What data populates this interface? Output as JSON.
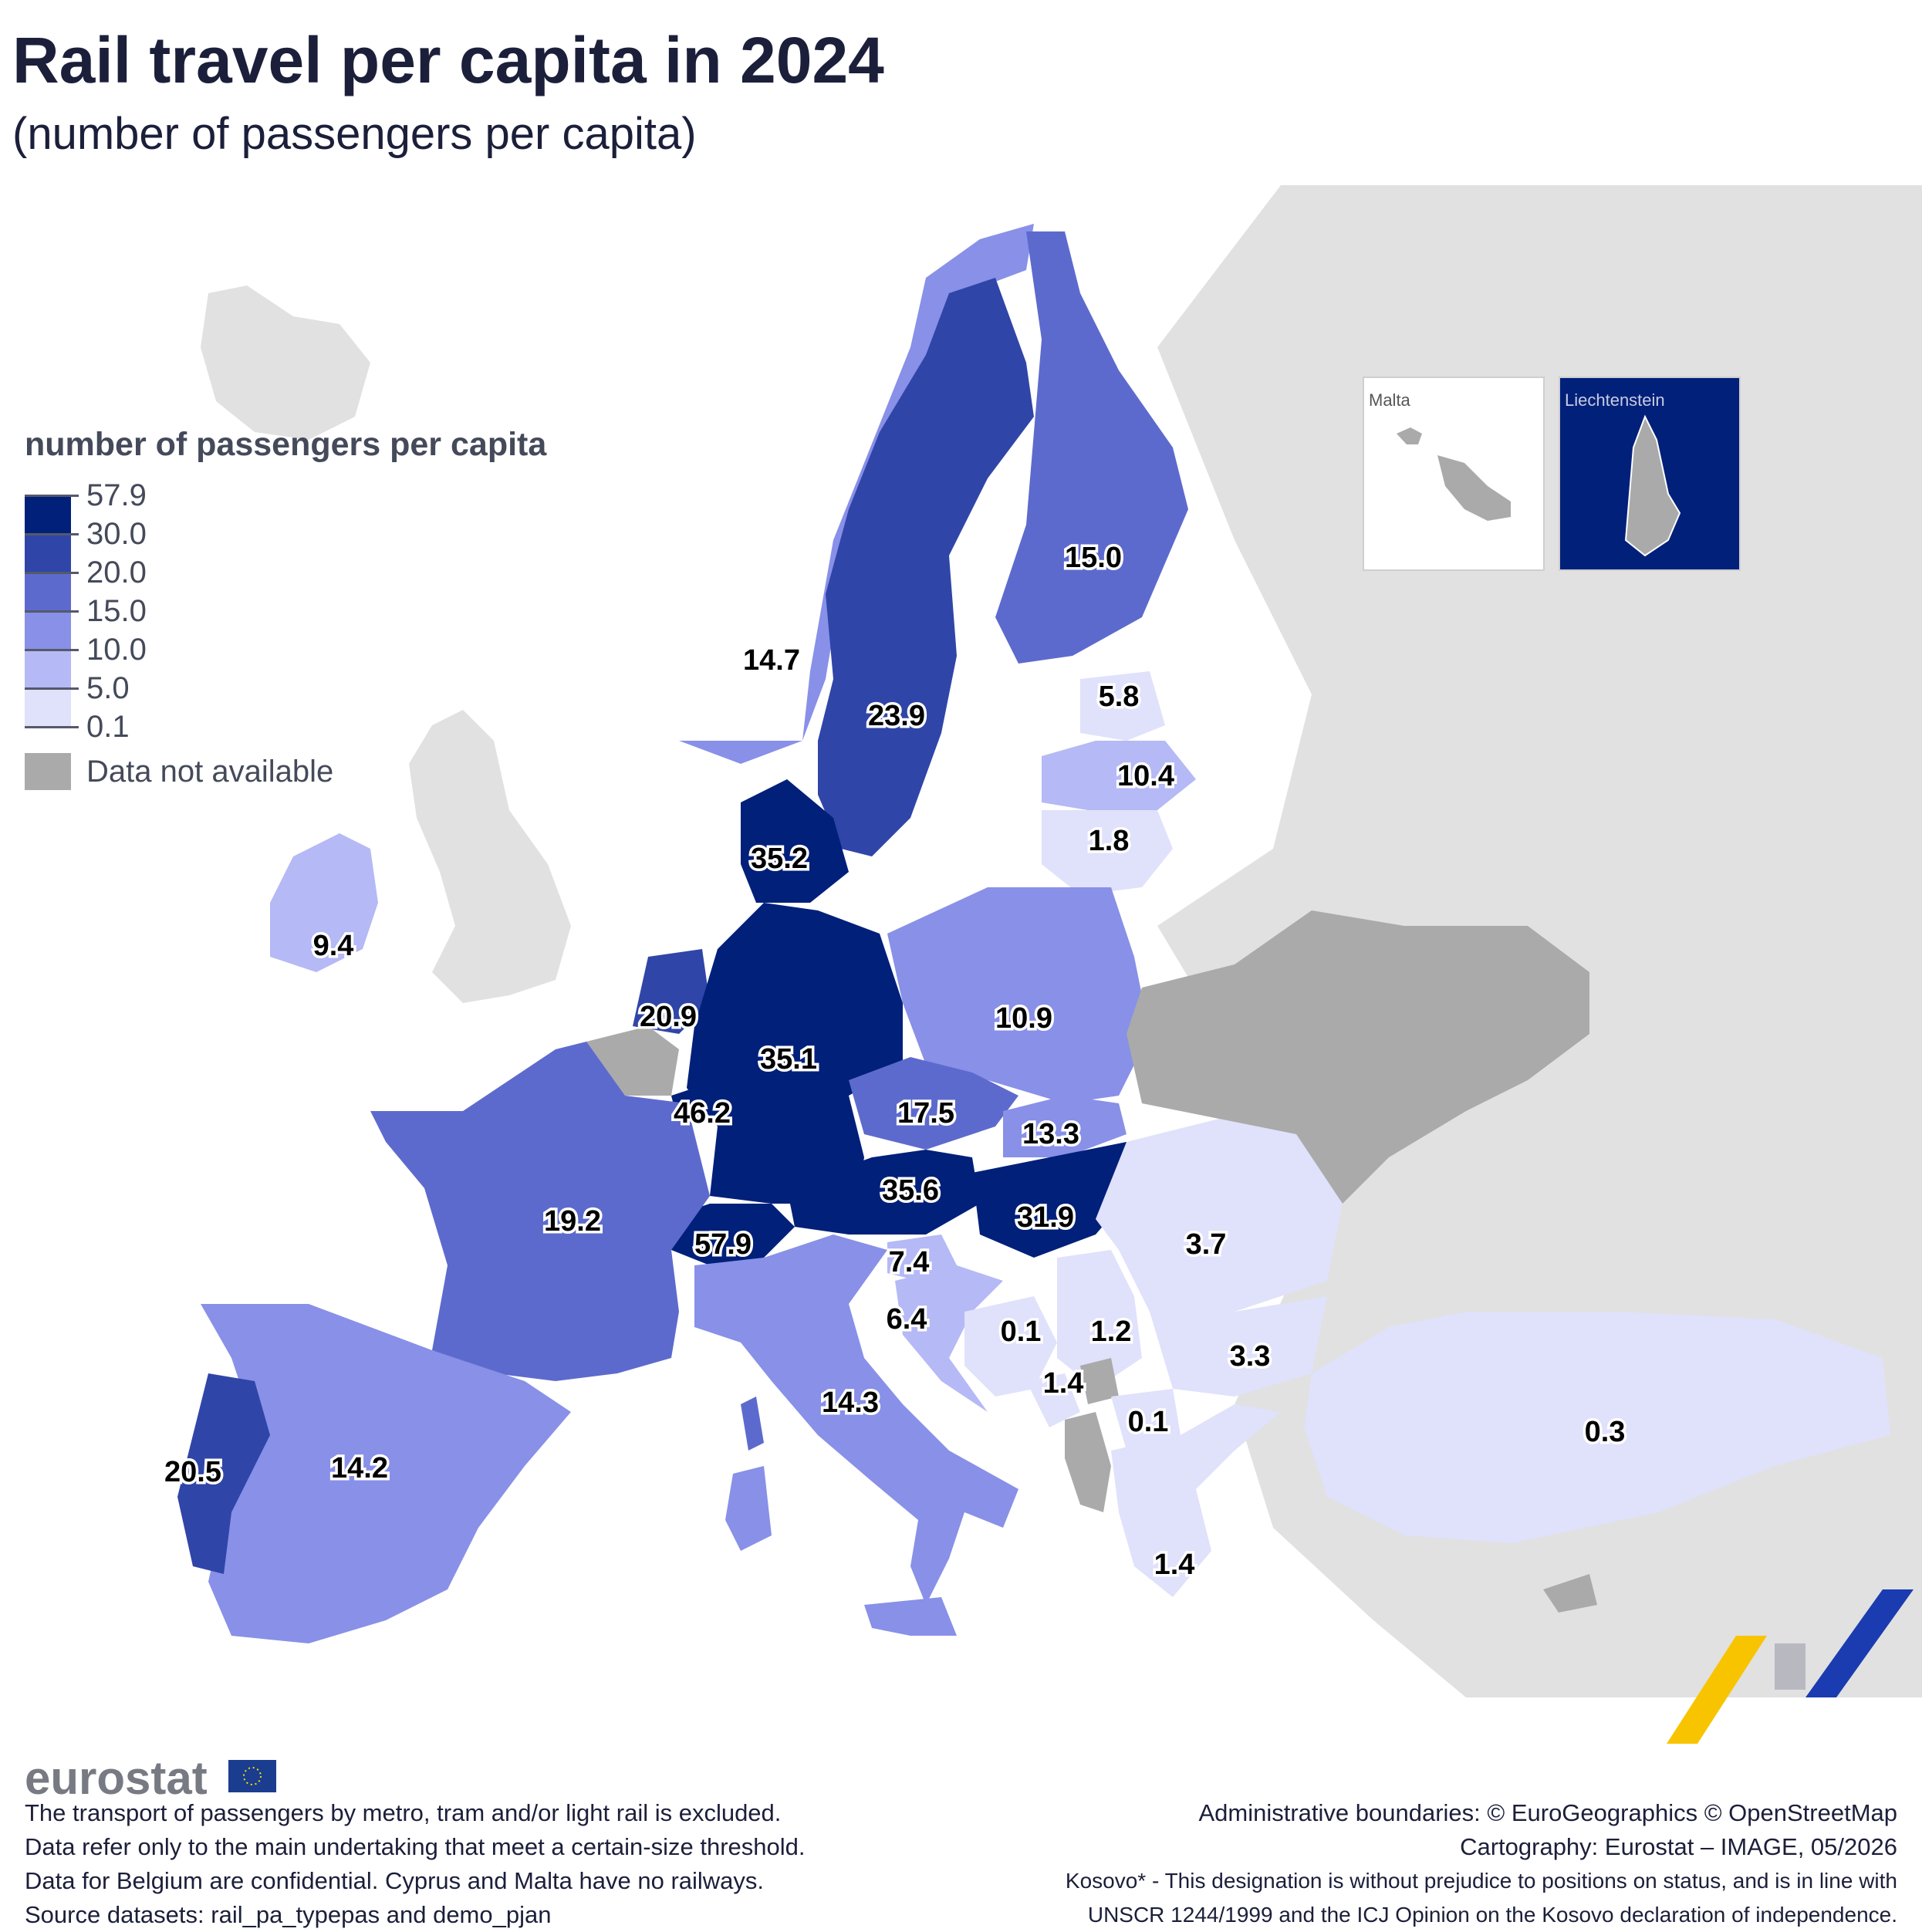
{
  "title": "Rail travel per capita in 2024",
  "subtitle": "(number of passengers per capita)",
  "legend": {
    "title": "number of passengers per capita",
    "breaks": [
      "57.9",
      "30.0",
      "20.0",
      "15.0",
      "10.0",
      "5.0",
      "0.1"
    ],
    "colors": [
      "#00207a",
      "#3045a8",
      "#5d6acd",
      "#8890e8",
      "#b5b9f5",
      "#e0e1fb"
    ],
    "no_data_label": "Data not available",
    "no_data_color": "#aaaaaa"
  },
  "map": {
    "background_color": "#e1e1e1",
    "sea_color": "#ffffff",
    "region_values": [
      {
        "value": "35.2"
      },
      {
        "value": "46.2"
      },
      {
        "value": "35.6"
      },
      {
        "value": "31.9"
      },
      {
        "value": "35.1"
      },
      {
        "value": "57.9"
      },
      {
        "value": "23.9"
      },
      {
        "value": "20.9"
      },
      {
        "value": "20.5"
      },
      {
        "value": "19.2"
      },
      {
        "value": "17.5"
      },
      {
        "value": "15.0"
      },
      {
        "value": "14.7"
      },
      {
        "value": "14.2"
      },
      {
        "value": "14.3"
      },
      {
        "value": "13.3"
      },
      {
        "value": "10.9"
      },
      {
        "value": "10.4"
      },
      {
        "value": "9.4"
      },
      {
        "value": "7.4"
      },
      {
        "value": "6.4"
      },
      {
        "value": "5.8"
      },
      {
        "value": "3.7"
      },
      {
        "value": "3.3"
      },
      {
        "value": "1.8"
      },
      {
        "value": "1.2"
      },
      {
        "value": "1.4"
      },
      {
        "value": "1.4"
      },
      {
        "value": "0.3"
      },
      {
        "value": "0.1"
      },
      {
        "value": "0.1"
      }
    ]
  },
  "insets": [
    {
      "label": "Malta"
    },
    {
      "label": "Liechtenstein"
    }
  ],
  "logo": {
    "text": "eurostat"
  },
  "footer_left": [
    "The transport of passengers by metro, tram and/or light rail is excluded.",
    "Data refer only to the main undertaking that meet a certain-size threshold.",
    "Data for Belgium are confidential. Cyprus and Malta have no railways.",
    "Source datasets: rail_pa_typepas and demo_pjan"
  ],
  "footer_right": [
    "Administrative boundaries: © EuroGeographics © OpenStreetMap",
    "Cartography: Eurostat – IMAGE, 05/2026",
    "Kosovo* - This designation is without prejudice to positions on status, and is in line with",
    "UNSCR 1244/1999 and the ICJ Opinion on the Kosovo declaration of independence."
  ]
}
